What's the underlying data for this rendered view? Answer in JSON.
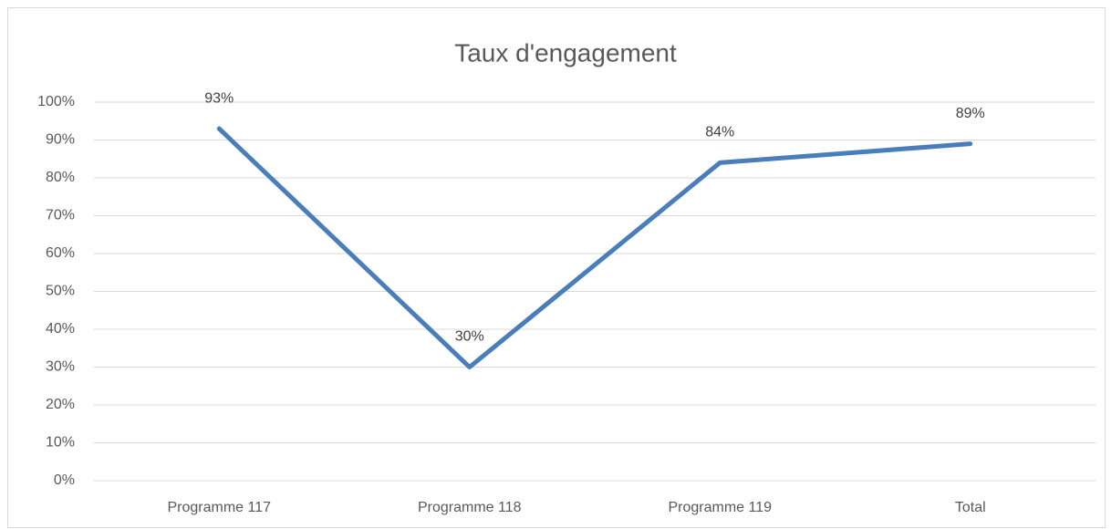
{
  "chart_data": {
    "type": "line",
    "title": "Taux d'engagement",
    "categories": [
      "Programme 117",
      "Programme 118",
      "Programme 119",
      "Total"
    ],
    "series": [
      {
        "name": "Taux d'engagement",
        "color": "#4a7ebb",
        "values": [
          93,
          30,
          84,
          89
        ],
        "value_labels": [
          "93%",
          "30%",
          "84%",
          "89%"
        ]
      }
    ],
    "ylim": [
      0,
      100
    ],
    "yticks": [
      {
        "value": 0,
        "label": "0%"
      },
      {
        "value": 10,
        "label": "10%"
      },
      {
        "value": 20,
        "label": "20%"
      },
      {
        "value": 30,
        "label": "30%"
      },
      {
        "value": 40,
        "label": "40%"
      },
      {
        "value": 50,
        "label": "50%"
      },
      {
        "value": 60,
        "label": "60%"
      },
      {
        "value": 70,
        "label": "70%"
      },
      {
        "value": 80,
        "label": "80%"
      },
      {
        "value": 90,
        "label": "90%"
      },
      {
        "value": 100,
        "label": "100%"
      }
    ],
    "grid": true
  }
}
